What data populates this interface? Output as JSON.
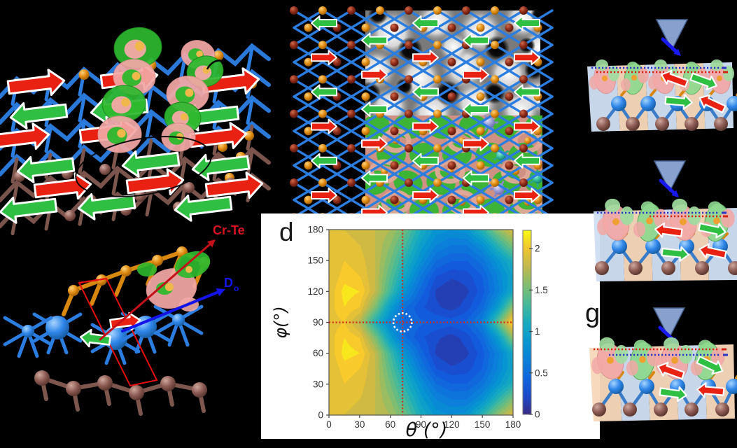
{
  "figure": {
    "background": "#000000",
    "description_labels": {
      "panel_d": "d",
      "panel_g": "g"
    }
  },
  "colors": {
    "background": "#000000",
    "spin_right_arrow": "#e82112",
    "spin_left_arrow": "#2fc043",
    "bond_blue": "#2b7de0",
    "bond_brown": "#7d564e",
    "bond_orange": "#d8870f",
    "atom_blue": "#2f86e8",
    "atom_orange": "#e08a10",
    "atom_brown": "#8a5a52",
    "atom_dark_red": "#8c2a18",
    "atom_lavender": "#9b9bd4",
    "atom_teal": "#2db89c",
    "isosurface_green": "#2eb82e",
    "isosurface_pink": "#f2a8a6",
    "tip_fill": "#8fa9d9",
    "tip_outline": "#44608f",
    "tip_arrow_blue": "#1818f0",
    "stripe_blue": "#cfe0f3",
    "stripe_orange": "#f7d9bb",
    "dotted_blue": "#2a35c8",
    "dotted_red": "#d42313",
    "unit_cell_red": "#e50f0f",
    "stm_grayscale_base": "#7a7a7a",
    "charge_base": "#cf9184"
  },
  "panel_b": {
    "bond_label": "Cr-Te",
    "bond_label_color": "#d61420",
    "dmi_label": "D",
    "dmi_label_sub": "o",
    "dmi_label_color": "#1414e8"
  },
  "panel_efg": {
    "label": "g"
  },
  "chart_data": {
    "type": "heatmap",
    "panel_label": "d",
    "xlabel": "θ (°)",
    "ylabel": "φ(°)",
    "x_range": [
      0,
      180
    ],
    "y_range": [
      0,
      180
    ],
    "x_ticks": [
      0,
      30,
      60,
      90,
      120,
      150,
      180
    ],
    "y_ticks": [
      0,
      30,
      60,
      90,
      120,
      150,
      180
    ],
    "grid": false,
    "legend_position": "colorbar-right",
    "colorbar": {
      "ticks": [
        0,
        0.5,
        1,
        1.5,
        2
      ],
      "range": [
        0,
        2.22
      ],
      "colormap": "parula"
    },
    "theta_grid": [
      0,
      15,
      30,
      45,
      60,
      75,
      90,
      105,
      120,
      135,
      150,
      165,
      180
    ],
    "phi_grid": [
      0,
      15,
      30,
      45,
      60,
      75,
      90,
      105,
      120,
      135,
      150,
      165,
      180
    ],
    "values": [
      [
        1.9,
        1.9,
        1.85,
        1.8,
        1.7,
        1.45,
        1.1,
        0.85,
        0.8,
        0.85,
        1.2,
        1.6,
        1.9
      ],
      [
        1.9,
        1.95,
        1.9,
        1.8,
        1.6,
        1.3,
        0.95,
        0.7,
        0.6,
        0.6,
        0.8,
        1.2,
        1.55
      ],
      [
        1.9,
        2.0,
        1.95,
        1.8,
        1.5,
        1.15,
        0.8,
        0.5,
        0.4,
        0.4,
        0.55,
        0.85,
        1.15
      ],
      [
        1.9,
        2.05,
        2.0,
        1.8,
        1.4,
        1.0,
        0.6,
        0.3,
        0.22,
        0.25,
        0.4,
        0.7,
        1.0
      ],
      [
        1.92,
        2.15,
        2.1,
        1.8,
        1.3,
        0.8,
        0.45,
        0.18,
        0.1,
        0.18,
        0.35,
        0.65,
        1.05
      ],
      [
        1.95,
        2.1,
        2.0,
        1.55,
        0.95,
        0.5,
        0.32,
        0.22,
        0.15,
        0.25,
        0.45,
        0.9,
        1.6
      ],
      [
        1.95,
        2.0,
        1.75,
        1.15,
        0.7,
        0.45,
        0.42,
        0.38,
        0.35,
        0.42,
        0.65,
        1.4,
        2.15
      ],
      [
        1.95,
        2.1,
        2.0,
        1.55,
        0.95,
        0.5,
        0.32,
        0.22,
        0.15,
        0.25,
        0.45,
        0.9,
        1.6
      ],
      [
        1.92,
        2.15,
        2.1,
        1.8,
        1.3,
        0.8,
        0.45,
        0.18,
        0.1,
        0.18,
        0.35,
        0.65,
        1.05
      ],
      [
        1.9,
        2.05,
        2.0,
        1.8,
        1.4,
        1.0,
        0.6,
        0.3,
        0.22,
        0.25,
        0.4,
        0.7,
        1.0
      ],
      [
        1.9,
        2.0,
        1.95,
        1.8,
        1.5,
        1.15,
        0.8,
        0.5,
        0.4,
        0.4,
        0.55,
        0.85,
        1.15
      ],
      [
        1.9,
        1.95,
        1.9,
        1.8,
        1.6,
        1.3,
        0.95,
        0.7,
        0.6,
        0.6,
        0.8,
        1.2,
        1.55
      ],
      [
        1.9,
        1.9,
        1.85,
        1.8,
        1.7,
        1.45,
        1.1,
        0.85,
        0.8,
        0.85,
        1.2,
        1.6,
        1.9
      ]
    ],
    "annotations": {
      "crosshair": {
        "theta": 72,
        "phi": 90,
        "color": "#d42a1a",
        "style": "dotted"
      },
      "circle": {
        "theta": 72,
        "phi": 90,
        "radius_deg": 9,
        "color": "#ffffff",
        "style": "dotted"
      }
    }
  }
}
